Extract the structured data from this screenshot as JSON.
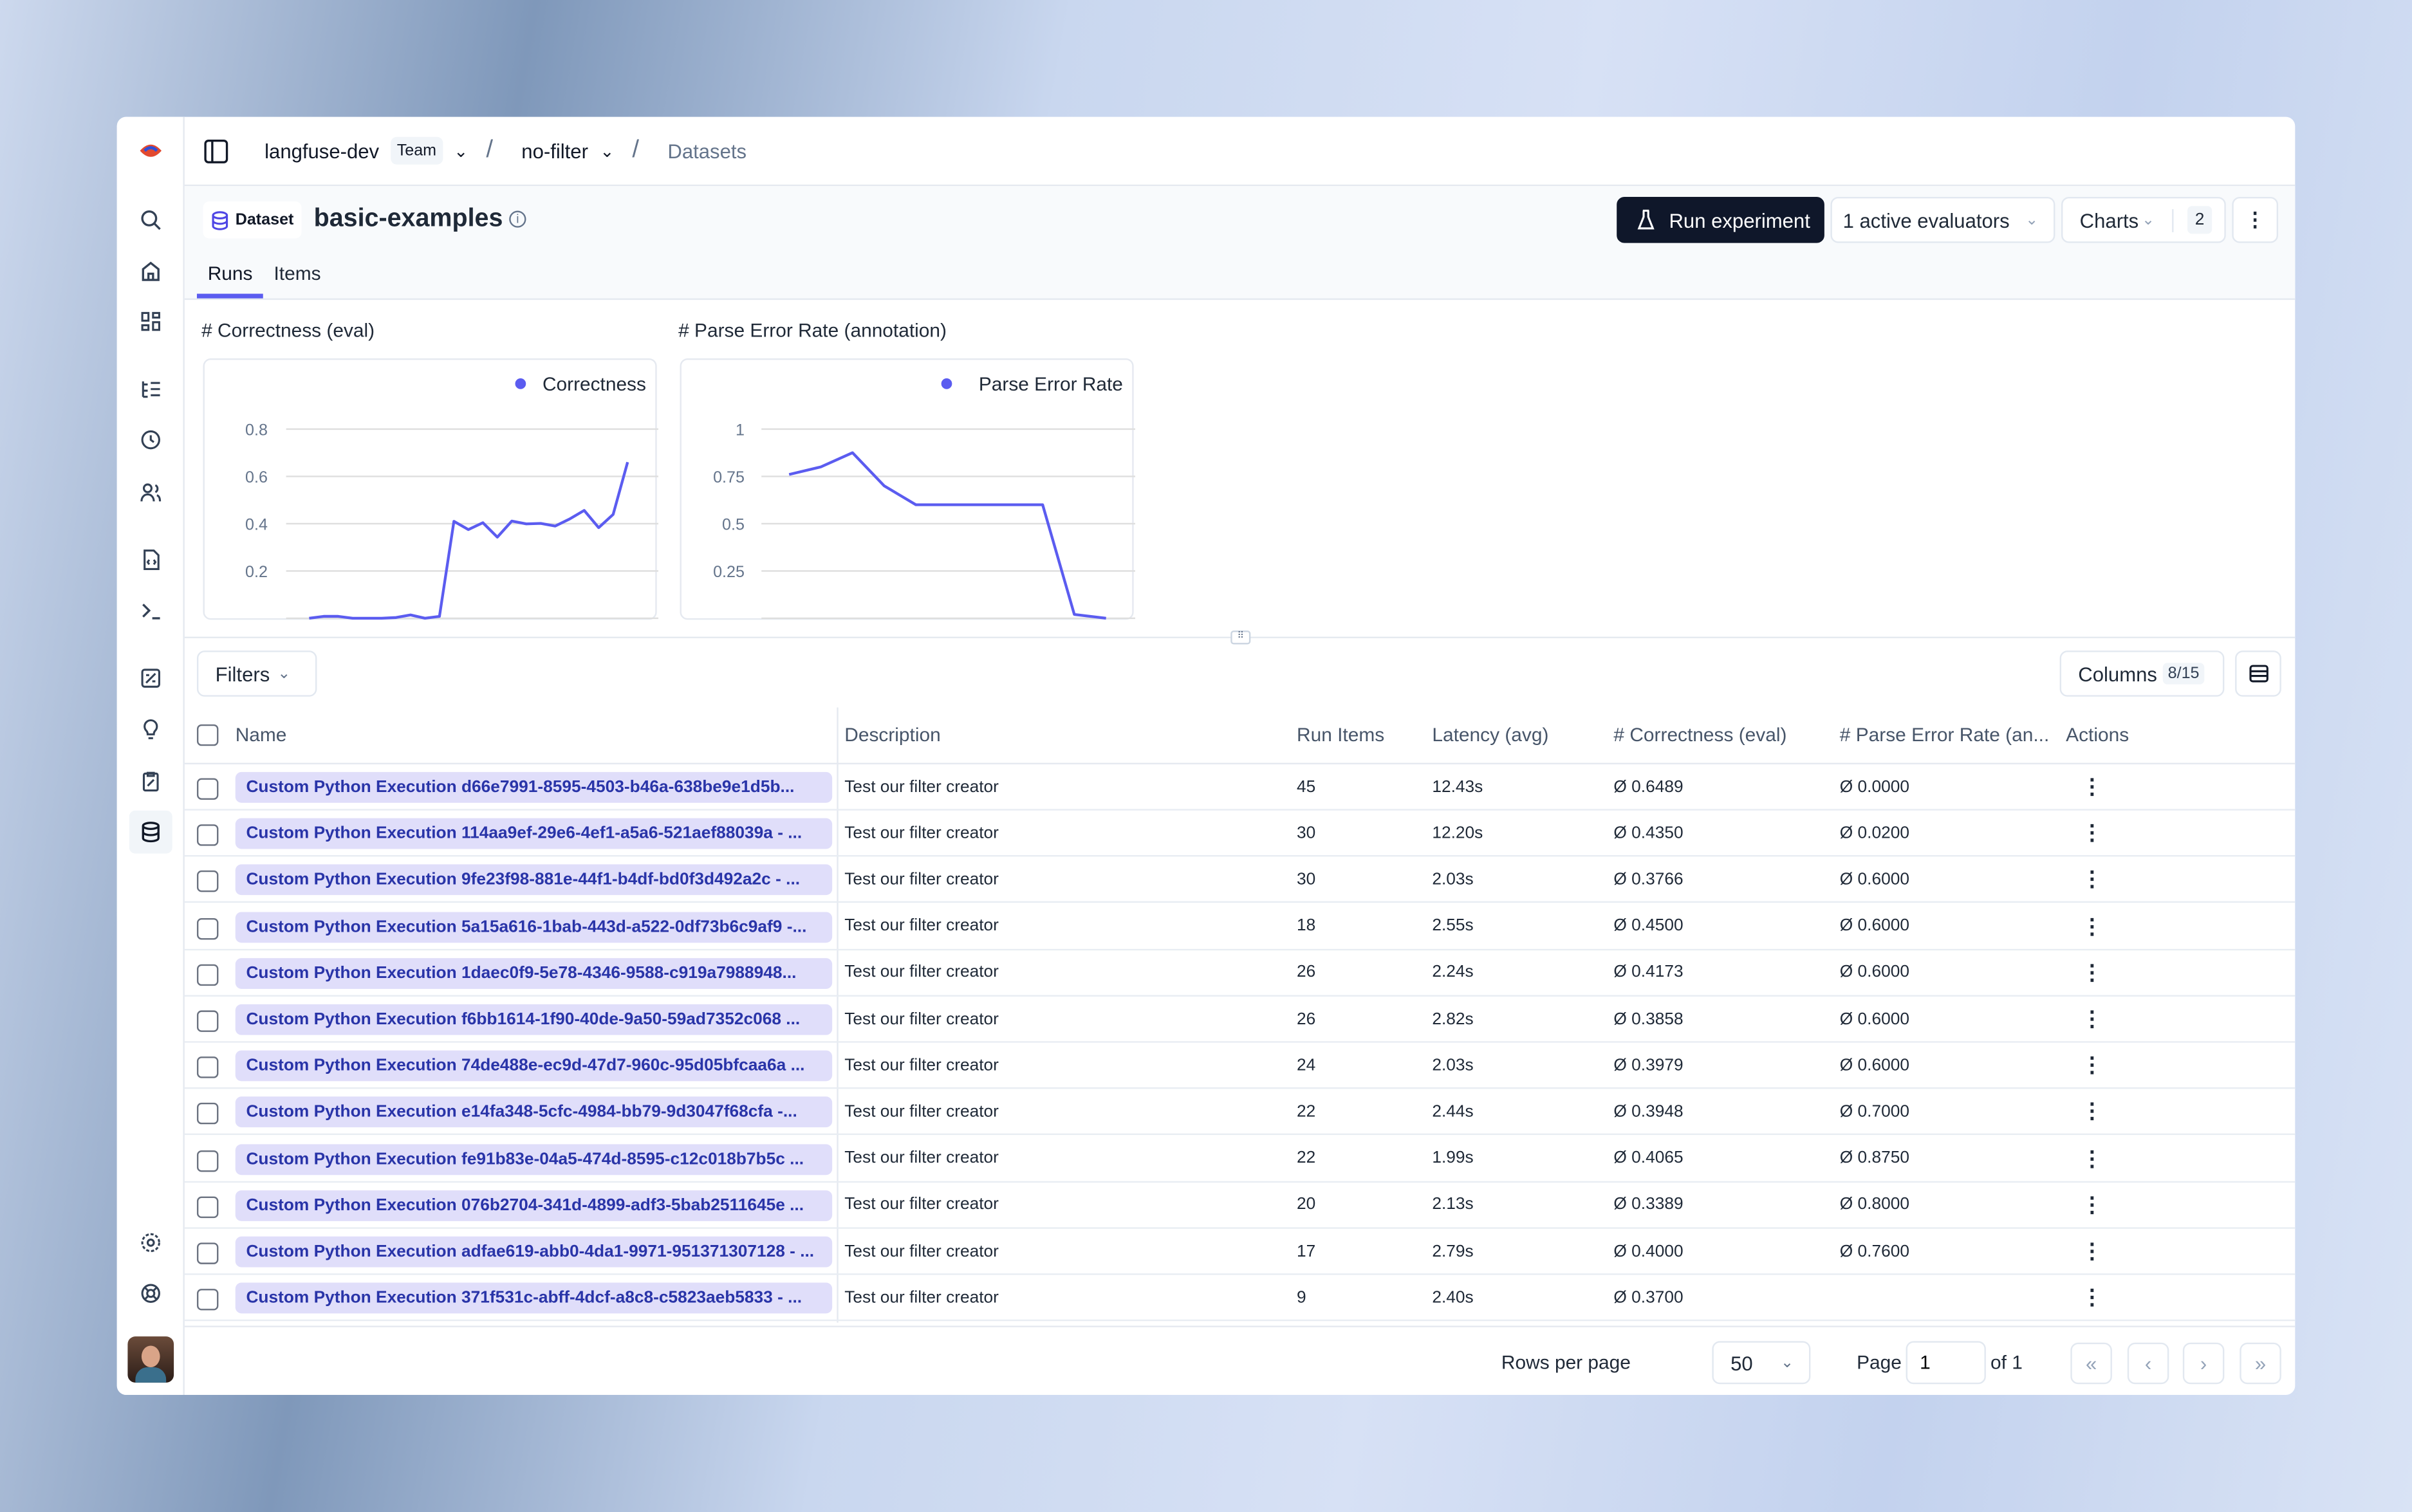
{
  "breadcrumb": {
    "org": "langfuse-dev",
    "org_badge": "Team",
    "project": "no-filter",
    "page": "Datasets"
  },
  "header": {
    "type_label": "Dataset",
    "title": "basic-examples",
    "run_experiment": "Run experiment",
    "evaluators": "1 active evaluators",
    "charts": "Charts",
    "charts_count": "2"
  },
  "tabs": [
    {
      "label": "Runs",
      "active": true
    },
    {
      "label": "Items",
      "active": false
    }
  ],
  "accent": "#5b5cf0",
  "chart_data": [
    {
      "type": "line",
      "title": "# Correctness (eval)",
      "series": [
        {
          "name": "Correctness",
          "values": [
            0,
            0.008,
            0.008,
            0,
            0,
            0,
            0.003,
            0.014,
            0,
            0.008,
            0.41,
            0.375,
            0.404,
            0.343,
            0.411,
            0.399,
            0.401,
            0.39,
            0.42,
            0.456,
            0.383,
            0.439,
            0.66
          ]
        }
      ],
      "yticks": [
        "0.2",
        "0.4",
        "0.6",
        "0.8"
      ],
      "ylim": [
        0,
        0.8
      ],
      "legend": "top-right",
      "grid": true
    },
    {
      "type": "line",
      "title": "# Parse Error Rate (annotation)",
      "series": [
        {
          "name": "Parse Error Rate",
          "values": [
            0.76,
            0.8,
            0.875,
            0.7,
            0.6,
            0.6,
            0.6,
            0.6,
            0.6,
            0.02,
            0
          ]
        }
      ],
      "yticks": [
        "0.25",
        "0.5",
        "0.75",
        "1"
      ],
      "ylim": [
        0,
        1
      ],
      "legend": "top-right",
      "grid": true
    }
  ],
  "toolbar": {
    "filters": "Filters",
    "columns": "Columns",
    "columns_count": "8/15"
  },
  "table": {
    "columns": [
      "Name",
      "Description",
      "Run Items",
      "Latency (avg)",
      "# Correctness (eval)",
      "# Parse Error Rate (an...",
      "Actions"
    ],
    "rows": [
      {
        "name": "Custom Python Execution d66e7991-8595-4503-b46a-638be9e1d5b...",
        "desc": "Test our filter creator",
        "items": "45",
        "latency": "12.43s",
        "corr": "Ø 0.6489",
        "parse": "Ø 0.0000"
      },
      {
        "name": "Custom Python Execution 114aa9ef-29e6-4ef1-a5a6-521aef88039a - ...",
        "desc": "Test our filter creator",
        "items": "30",
        "latency": "12.20s",
        "corr": "Ø 0.4350",
        "parse": "Ø 0.0200"
      },
      {
        "name": "Custom Python Execution 9fe23f98-881e-44f1-b4df-bd0f3d492a2c - ...",
        "desc": "Test our filter creator",
        "items": "30",
        "latency": "2.03s",
        "corr": "Ø 0.3766",
        "parse": "Ø 0.6000"
      },
      {
        "name": "Custom Python Execution 5a15a616-1bab-443d-a522-0df73b6c9af9 -...",
        "desc": "Test our filter creator",
        "items": "18",
        "latency": "2.55s",
        "corr": "Ø 0.4500",
        "parse": "Ø 0.6000"
      },
      {
        "name": "Custom Python Execution 1daec0f9-5e78-4346-9588-c919a7988948...",
        "desc": "Test our filter creator",
        "items": "26",
        "latency": "2.24s",
        "corr": "Ø 0.4173",
        "parse": "Ø 0.6000"
      },
      {
        "name": "Custom Python Execution f6bb1614-1f90-40de-9a50-59ad7352c068 ...",
        "desc": "Test our filter creator",
        "items": "26",
        "latency": "2.82s",
        "corr": "Ø 0.3858",
        "parse": "Ø 0.6000"
      },
      {
        "name": "Custom Python Execution 74de488e-ec9d-47d7-960c-95d05bfcaa6a ...",
        "desc": "Test our filter creator",
        "items": "24",
        "latency": "2.03s",
        "corr": "Ø 0.3979",
        "parse": "Ø 0.6000"
      },
      {
        "name": "Custom Python Execution e14fa348-5cfc-4984-bb79-9d3047f68cfa -...",
        "desc": "Test our filter creator",
        "items": "22",
        "latency": "2.44s",
        "corr": "Ø 0.3948",
        "parse": "Ø 0.7000"
      },
      {
        "name": "Custom Python Execution fe91b83e-04a5-474d-8595-c12c018b7b5c ...",
        "desc": "Test our filter creator",
        "items": "22",
        "latency": "1.99s",
        "corr": "Ø 0.4065",
        "parse": "Ø 0.8750"
      },
      {
        "name": "Custom Python Execution 076b2704-341d-4899-adf3-5bab2511645e ...",
        "desc": "Test our filter creator",
        "items": "20",
        "latency": "2.13s",
        "corr": "Ø 0.3389",
        "parse": "Ø 0.8000"
      },
      {
        "name": "Custom Python Execution adfae619-abb0-4da1-9971-951371307128 - ...",
        "desc": "Test our filter creator",
        "items": "17",
        "latency": "2.79s",
        "corr": "Ø 0.4000",
        "parse": "Ø 0.7600"
      },
      {
        "name": "Custom Python Execution 371f531c-abff-4dcf-a8c8-c5823aeb5833 - ...",
        "desc": "Test our filter creator",
        "items": "9",
        "latency": "2.40s",
        "corr": "Ø 0.3700",
        "parse": ""
      }
    ]
  },
  "footer": {
    "rows_per_page_label": "Rows per page",
    "rows_per_page": "50",
    "page_label": "Page",
    "page": "1",
    "of": "of 1"
  }
}
